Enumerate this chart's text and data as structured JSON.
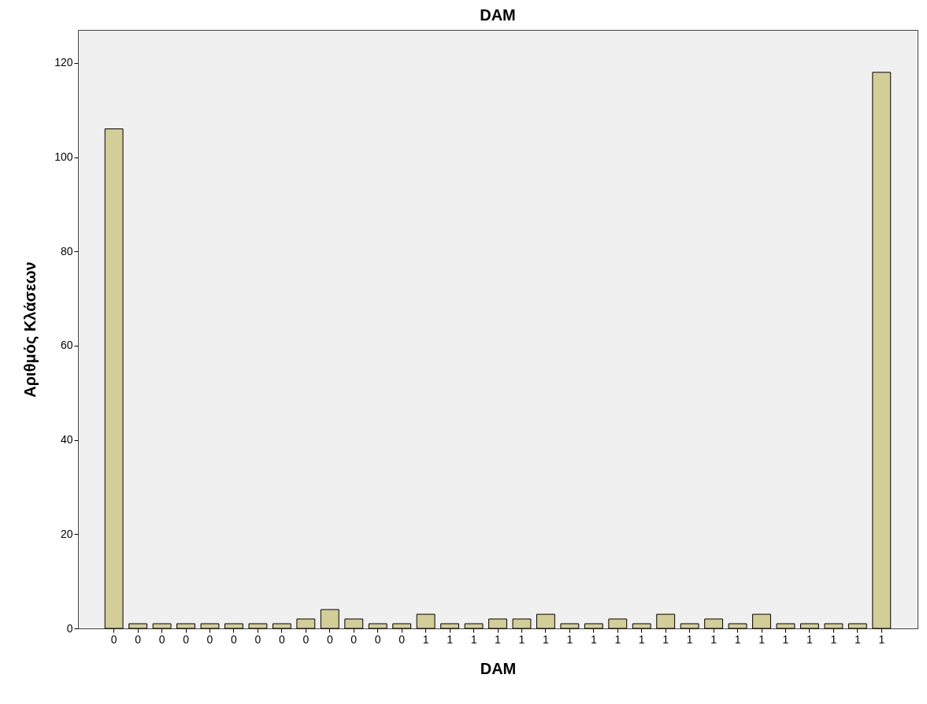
{
  "chart_data": {
    "type": "bar",
    "title": "DAM",
    "xlabel": "DAM",
    "ylabel": "Αριθμός Κλάσεων",
    "categories": [
      "0",
      "0",
      "0",
      "0",
      "0",
      "0",
      "0",
      "0",
      "0",
      "0",
      "0",
      "0",
      "0",
      "1",
      "1",
      "1",
      "1",
      "1",
      "1",
      "1",
      "1",
      "1",
      "1",
      "1",
      "1",
      "1",
      "1",
      "1",
      "1",
      "1",
      "1",
      "1",
      "1"
    ],
    "values": [
      106,
      1,
      1,
      1,
      1,
      1,
      1,
      1,
      2,
      4,
      2,
      1,
      1,
      3,
      1,
      1,
      2,
      2,
      3,
      1,
      1,
      2,
      1,
      3,
      1,
      2,
      1,
      3,
      1,
      1,
      1,
      1,
      118
    ],
    "color": "#d3ce97",
    "ylim": [
      0,
      127
    ],
    "yticks": [
      0,
      20,
      40,
      60,
      80,
      100,
      120
    ],
    "grid": false
  }
}
